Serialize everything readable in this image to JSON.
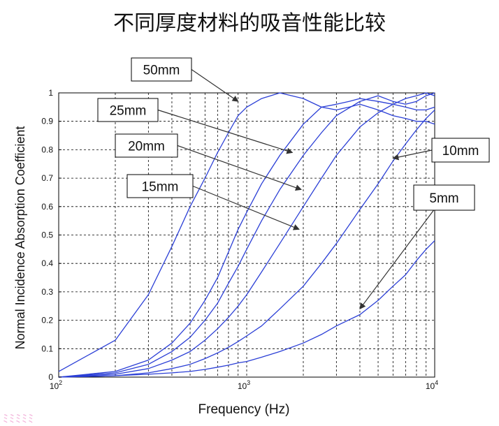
{
  "chart_data": {
    "type": "line",
    "title": "不同厚度材料的吸音性能比较",
    "xlabel": "Frequency (Hz)",
    "ylabel": "Normal Incidence Absorption Coefficient",
    "xscale": "log",
    "xlim": [
      100,
      10000
    ],
    "ylim": [
      0,
      1
    ],
    "grid": true,
    "line_color": "#2b3fd6",
    "x_ticks": [
      {
        "value": 100,
        "base": "10",
        "exp": "2"
      },
      {
        "value": 1000,
        "base": "10",
        "exp": "3"
      },
      {
        "value": 10000,
        "base": "10",
        "exp": "4"
      }
    ],
    "y_ticks": [
      "0",
      "0.1",
      "0.2",
      "0.3",
      "0.4",
      "0.5",
      "0.6",
      "0.7",
      "0.8",
      "0.9",
      "1"
    ],
    "series": [
      {
        "name": "50mm",
        "points": [
          [
            100,
            0.02
          ],
          [
            200,
            0.13
          ],
          [
            300,
            0.29
          ],
          [
            400,
            0.46
          ],
          [
            500,
            0.6
          ],
          [
            600,
            0.7
          ],
          [
            700,
            0.79
          ],
          [
            800,
            0.86
          ],
          [
            900,
            0.92
          ],
          [
            1000,
            0.95
          ],
          [
            1200,
            0.98
          ],
          [
            1500,
            1.0
          ],
          [
            2000,
            0.98
          ],
          [
            2500,
            0.95
          ],
          [
            3000,
            0.94
          ],
          [
            3500,
            0.95
          ],
          [
            4000,
            0.96
          ],
          [
            5000,
            0.94
          ],
          [
            6000,
            0.92
          ],
          [
            7000,
            0.91
          ],
          [
            8000,
            0.9
          ],
          [
            9000,
            0.9
          ],
          [
            10000,
            0.89
          ]
        ]
      },
      {
        "name": "25mm",
        "points": [
          [
            100,
            0.0
          ],
          [
            200,
            0.02
          ],
          [
            300,
            0.06
          ],
          [
            400,
            0.12
          ],
          [
            500,
            0.19
          ],
          [
            600,
            0.27
          ],
          [
            700,
            0.35
          ],
          [
            800,
            0.44
          ],
          [
            900,
            0.52
          ],
          [
            1000,
            0.58
          ],
          [
            1200,
            0.68
          ],
          [
            1500,
            0.78
          ],
          [
            2000,
            0.89
          ],
          [
            2500,
            0.95
          ],
          [
            3000,
            0.96
          ],
          [
            3500,
            0.97
          ],
          [
            4000,
            0.98
          ],
          [
            5000,
            0.97
          ],
          [
            6000,
            0.96
          ],
          [
            7000,
            0.95
          ],
          [
            8000,
            0.94
          ],
          [
            9000,
            0.94
          ],
          [
            10000,
            0.95
          ]
        ]
      },
      {
        "name": "20mm",
        "points": [
          [
            100,
            0.0
          ],
          [
            200,
            0.015
          ],
          [
            300,
            0.045
          ],
          [
            400,
            0.09
          ],
          [
            500,
            0.14
          ],
          [
            600,
            0.2
          ],
          [
            700,
            0.26
          ],
          [
            800,
            0.33
          ],
          [
            900,
            0.39
          ],
          [
            1000,
            0.45
          ],
          [
            1200,
            0.55
          ],
          [
            1500,
            0.66
          ],
          [
            2000,
            0.78
          ],
          [
            2500,
            0.86
          ],
          [
            3000,
            0.92
          ],
          [
            4000,
            0.97
          ],
          [
            5000,
            0.99
          ],
          [
            6000,
            0.97
          ],
          [
            7000,
            0.96
          ],
          [
            8000,
            0.97
          ],
          [
            9000,
            0.99
          ],
          [
            10000,
            1.0
          ]
        ]
      },
      {
        "name": "15mm",
        "points": [
          [
            100,
            0.0
          ],
          [
            200,
            0.01
          ],
          [
            300,
            0.03
          ],
          [
            400,
            0.06
          ],
          [
            500,
            0.09
          ],
          [
            600,
            0.13
          ],
          [
            700,
            0.17
          ],
          [
            800,
            0.21
          ],
          [
            900,
            0.25
          ],
          [
            1000,
            0.29
          ],
          [
            1200,
            0.37
          ],
          [
            1500,
            0.47
          ],
          [
            2000,
            0.6
          ],
          [
            2500,
            0.7
          ],
          [
            3000,
            0.78
          ],
          [
            4000,
            0.88
          ],
          [
            5000,
            0.93
          ],
          [
            6000,
            0.96
          ],
          [
            7000,
            0.98
          ],
          [
            8000,
            0.99
          ],
          [
            9000,
            1.0
          ],
          [
            10000,
            0.99
          ]
        ]
      },
      {
        "name": "10mm",
        "points": [
          [
            100,
            0.0
          ],
          [
            200,
            0.005
          ],
          [
            300,
            0.015
          ],
          [
            400,
            0.03
          ],
          [
            500,
            0.045
          ],
          [
            600,
            0.065
          ],
          [
            700,
            0.085
          ],
          [
            800,
            0.105
          ],
          [
            900,
            0.125
          ],
          [
            1000,
            0.145
          ],
          [
            1200,
            0.18
          ],
          [
            1500,
            0.24
          ],
          [
            2000,
            0.32
          ],
          [
            2500,
            0.4
          ],
          [
            3000,
            0.47
          ],
          [
            4000,
            0.59
          ],
          [
            5000,
            0.68
          ],
          [
            6000,
            0.76
          ],
          [
            7000,
            0.82
          ],
          [
            8000,
            0.87
          ],
          [
            9000,
            0.91
          ],
          [
            10000,
            0.94
          ]
        ]
      },
      {
        "name": "5mm",
        "points": [
          [
            100,
            0.0
          ],
          [
            200,
            0.005
          ],
          [
            300,
            0.01
          ],
          [
            400,
            0.015
          ],
          [
            500,
            0.02
          ],
          [
            600,
            0.027
          ],
          [
            700,
            0.035
          ],
          [
            800,
            0.042
          ],
          [
            900,
            0.05
          ],
          [
            1000,
            0.055
          ],
          [
            1200,
            0.07
          ],
          [
            1500,
            0.09
          ],
          [
            2000,
            0.12
          ],
          [
            2500,
            0.15
          ],
          [
            3000,
            0.18
          ],
          [
            4000,
            0.22
          ],
          [
            5000,
            0.27
          ],
          [
            6000,
            0.32
          ],
          [
            7000,
            0.36
          ],
          [
            8000,
            0.41
          ],
          [
            9000,
            0.45
          ],
          [
            10000,
            0.48
          ]
        ]
      }
    ],
    "annotations": [
      {
        "text": "50mm",
        "series": "50mm",
        "x": 900,
        "y": 0.97
      },
      {
        "text": "25mm",
        "series": "25mm",
        "x": 1750,
        "y": 0.79
      },
      {
        "text": "20mm",
        "series": "20mm",
        "x": 1950,
        "y": 0.66
      },
      {
        "text": "15mm",
        "series": "15mm",
        "x": 1900,
        "y": 0.52
      },
      {
        "text": "10mm",
        "series": "10mm",
        "x": 6000,
        "y": 0.77
      },
      {
        "text": "5mm",
        "series": "5mm",
        "x": 4000,
        "y": 0.24
      }
    ]
  }
}
